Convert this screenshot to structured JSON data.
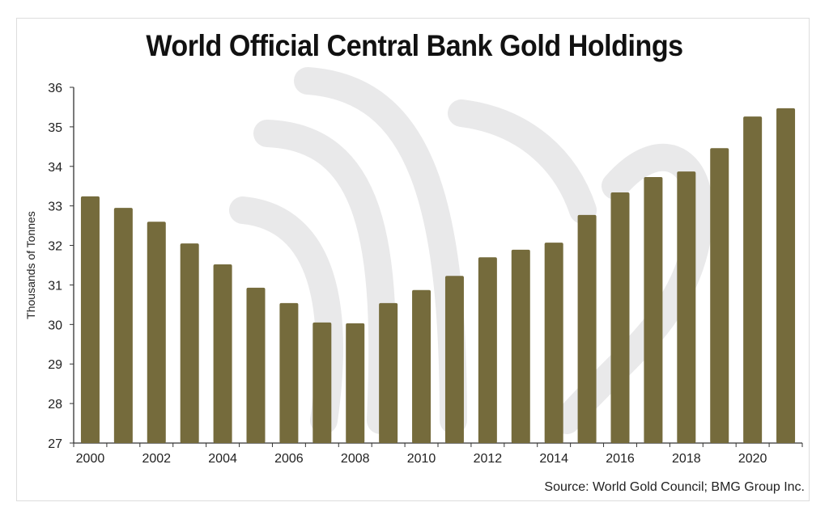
{
  "chart_data": {
    "type": "bar",
    "title": "World Official Central Bank Gold Holdings",
    "xlabel": "",
    "ylabel": "Thousands of Tonnes",
    "ylim": [
      27,
      36
    ],
    "yticks": [
      27,
      28,
      29,
      30,
      31,
      32,
      33,
      34,
      35,
      36
    ],
    "categories": [
      "2000",
      "2001",
      "2002",
      "2003",
      "2004",
      "2005",
      "2006",
      "2007",
      "2008",
      "2009",
      "2010",
      "2011",
      "2012",
      "2013",
      "2014",
      "2015",
      "2016",
      "2017",
      "2018",
      "2019",
      "2020",
      "2021"
    ],
    "xtick_labels": [
      "2000",
      "2002",
      "2004",
      "2006",
      "2008",
      "2010",
      "2012",
      "2014",
      "2016",
      "2018",
      "2020"
    ],
    "values": [
      33.24,
      32.95,
      32.6,
      32.05,
      31.52,
      30.93,
      30.54,
      30.05,
      30.03,
      30.54,
      30.87,
      31.23,
      31.7,
      31.89,
      32.07,
      32.77,
      33.34,
      33.73,
      33.87,
      34.46,
      35.26,
      35.47
    ],
    "grid": false,
    "legend": "none",
    "source": "Source: World Gold Council; BMG Group Inc.",
    "bar_color": "#756b3c"
  }
}
